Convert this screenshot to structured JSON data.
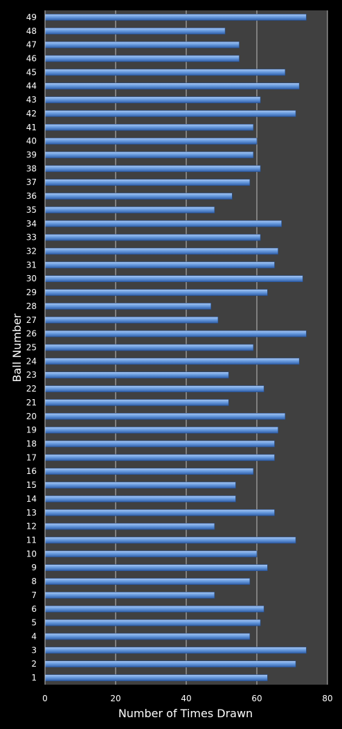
{
  "chart_data": {
    "type": "bar",
    "orientation": "horizontal",
    "xlabel": "Number of Times Drawn",
    "ylabel": "Ball Number",
    "xlim": [
      0,
      80
    ],
    "xticks": [
      0,
      20,
      40,
      60,
      80
    ],
    "grid": true,
    "colors": {
      "bar": "#5b8fd6",
      "plot_bg": "#404040",
      "page_bg": "#000000",
      "text": "#ffffff",
      "grid": "#bfbfbf"
    },
    "categories": [
      "1",
      "2",
      "3",
      "4",
      "5",
      "6",
      "7",
      "8",
      "9",
      "10",
      "11",
      "12",
      "13",
      "14",
      "15",
      "16",
      "17",
      "18",
      "19",
      "20",
      "21",
      "22",
      "23",
      "24",
      "25",
      "26",
      "27",
      "28",
      "29",
      "30",
      "31",
      "32",
      "33",
      "34",
      "35",
      "36",
      "37",
      "38",
      "39",
      "40",
      "41",
      "42",
      "43",
      "44",
      "45",
      "46",
      "47",
      "48",
      "49"
    ],
    "values": [
      63,
      71,
      74,
      58,
      61,
      62,
      48,
      58,
      63,
      60,
      71,
      48,
      65,
      54,
      54,
      59,
      65,
      65,
      66,
      68,
      52,
      62,
      52,
      72,
      59,
      74,
      49,
      47,
      63,
      73,
      65,
      66,
      61,
      67,
      48,
      53,
      58,
      61,
      59,
      60,
      59,
      71,
      61,
      72,
      68,
      55,
      55,
      51,
      74
    ]
  }
}
